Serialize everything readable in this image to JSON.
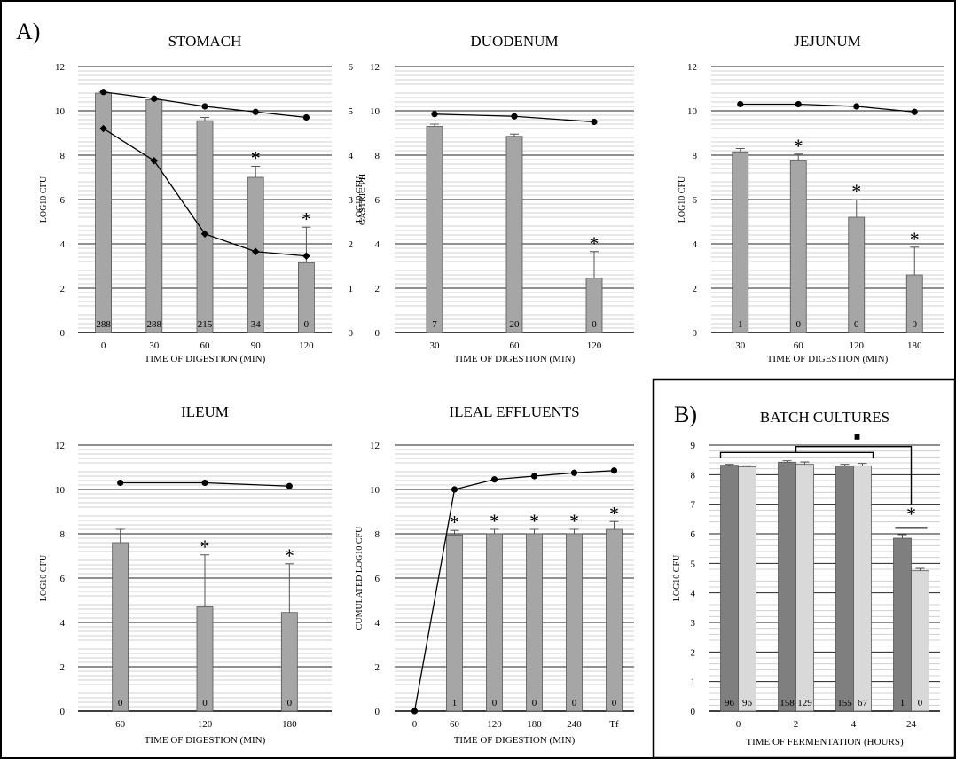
{
  "panel_a_label": "A)",
  "panel_b_label": "B)",
  "chart_data": [
    {
      "id": "stomach",
      "type": "bar",
      "title": "STOMACH",
      "xlabel": "TIME OF DIGESTION (MIN)",
      "ylabel": "LOG10 CFU",
      "y2label": "GASTRIC PH",
      "ylim": [
        0,
        12
      ],
      "y2lim": [
        0,
        6
      ],
      "yticks": [
        "0",
        "2",
        "4",
        "6",
        "8",
        "10",
        "12"
      ],
      "y2ticks": [
        "0",
        "1",
        "2",
        "3",
        "4",
        "5",
        "6"
      ],
      "categories": [
        "0",
        "30",
        "60",
        "90",
        "120"
      ],
      "series": [
        {
          "values": [
            10.8,
            10.5,
            9.55,
            7.0,
            3.15
          ],
          "errors": [
            0.05,
            0.05,
            0.15,
            0.5,
            1.6
          ],
          "color": "#a6a6a6"
        }
      ],
      "bar_labels": [
        "288",
        "288",
        "215",
        "34",
        "0"
      ],
      "significant": [
        false,
        false,
        false,
        true,
        true
      ],
      "lines": [
        {
          "values": [
            10.85,
            10.55,
            10.2,
            9.95,
            9.7
          ],
          "marker": "circle"
        },
        {
          "values": [
            9.2,
            7.75,
            4.45,
            3.65,
            3.45
          ],
          "marker": "diamond"
        }
      ],
      "grid": true
    },
    {
      "id": "duodenum",
      "type": "bar",
      "title": "DUODENUM",
      "xlabel": "TIME OF DIGESTION (MIN)",
      "ylabel": "LOG10 CFU",
      "ylim": [
        0,
        12
      ],
      "yticks": [
        "0",
        "2",
        "4",
        "6",
        "8",
        "10",
        "12"
      ],
      "categories": [
        "30",
        "60",
        "120"
      ],
      "series": [
        {
          "values": [
            9.3,
            8.85,
            2.45
          ],
          "errors": [
            0.1,
            0.1,
            1.2
          ],
          "color": "#a6a6a6"
        }
      ],
      "bar_labels": [
        "7",
        "20",
        "0"
      ],
      "significant": [
        false,
        false,
        true
      ],
      "lines": [
        {
          "values": [
            9.85,
            9.75,
            9.5
          ],
          "marker": "circle"
        }
      ],
      "grid": true
    },
    {
      "id": "jejunum",
      "type": "bar",
      "title": "JEJUNUM",
      "xlabel": "TIME OF DIGESTION (MIN)",
      "ylabel": "LOG10 CFU",
      "ylim": [
        0,
        12
      ],
      "yticks": [
        "0",
        "2",
        "4",
        "6",
        "8",
        "10",
        "12"
      ],
      "categories": [
        "30",
        "60",
        "120",
        "180"
      ],
      "series": [
        {
          "values": [
            8.15,
            7.75,
            5.2,
            2.6
          ],
          "errors": [
            0.15,
            0.3,
            0.8,
            1.25
          ],
          "color": "#a6a6a6"
        }
      ],
      "bar_labels": [
        "1",
        "0",
        "0",
        "0"
      ],
      "significant": [
        false,
        true,
        true,
        true
      ],
      "lines": [
        {
          "values": [
            10.3,
            10.3,
            10.2,
            9.95
          ],
          "marker": "circle"
        }
      ],
      "grid": true
    },
    {
      "id": "ileum",
      "type": "bar",
      "title": "ILEUM",
      "xlabel": "TIME OF DIGESTION (MIN)",
      "ylabel": "LOG10 CFU",
      "ylim": [
        0,
        12
      ],
      "yticks": [
        "0",
        "2",
        "4",
        "6",
        "8",
        "10",
        "12"
      ],
      "categories": [
        "60",
        "120",
        "180"
      ],
      "series": [
        {
          "values": [
            7.6,
            4.7,
            4.45
          ],
          "errors": [
            0.6,
            2.35,
            2.2
          ],
          "color": "#a6a6a6"
        }
      ],
      "bar_labels": [
        "0",
        "0",
        "0"
      ],
      "significant": [
        false,
        true,
        true
      ],
      "lines": [
        {
          "values": [
            10.3,
            10.3,
            10.15
          ],
          "marker": "circle"
        }
      ],
      "grid": true
    },
    {
      "id": "ileal_effluents",
      "type": "bar",
      "title": "ILEAL EFFLUENTS",
      "xlabel": "TIME OF DIGESTION (MIN)",
      "ylabel": "CUMULATED LOG10 CFU",
      "ylim": [
        0,
        12
      ],
      "yticks": [
        "0",
        "2",
        "4",
        "6",
        "8",
        "10",
        "12"
      ],
      "categories": [
        "0",
        "60",
        "120",
        "180",
        "240",
        "Tf"
      ],
      "series": [
        {
          "values": [
            null,
            7.95,
            8.0,
            8.0,
            8.0,
            8.2
          ],
          "errors": [
            null,
            0.2,
            0.2,
            0.2,
            0.2,
            0.35
          ],
          "color": "#a6a6a6"
        }
      ],
      "bar_labels": [
        "",
        "1",
        "0",
        "0",
        "0",
        "0"
      ],
      "significant": [
        false,
        true,
        true,
        true,
        true,
        true
      ],
      "lines": [
        {
          "values": [
            0,
            10.0,
            10.45,
            10.6,
            10.75,
            10.85
          ],
          "marker": "circle"
        }
      ],
      "grid": true
    },
    {
      "id": "batch_cultures",
      "type": "bar",
      "title": "BATCH CULTURES",
      "xlabel": "TIME OF FERMENTATION (HOURS)",
      "ylabel": "LOG10 CFU",
      "ylim": [
        0,
        9
      ],
      "yticks": [
        "0",
        "1",
        "2",
        "3",
        "4",
        "5",
        "6",
        "7",
        "8",
        "9"
      ],
      "categories": [
        "0",
        "2",
        "4",
        "24"
      ],
      "series": [
        {
          "values": [
            8.32,
            8.42,
            8.3,
            5.85
          ],
          "errors": [
            0.03,
            0.05,
            0.05,
            0.12
          ],
          "color": "#7f7f7f"
        },
        {
          "values": [
            8.27,
            8.35,
            8.3,
            4.75
          ],
          "errors": [
            0.03,
            0.08,
            0.08,
            0.08
          ],
          "color": "#d9d9d9"
        }
      ],
      "bar_labels": [
        [
          "96",
          "96"
        ],
        [
          "158",
          "129"
        ],
        [
          "155",
          "67"
        ],
        [
          "1",
          "0"
        ]
      ],
      "annotations": {
        "significance": "*",
        "group_marker": "■"
      },
      "grid": true
    }
  ]
}
